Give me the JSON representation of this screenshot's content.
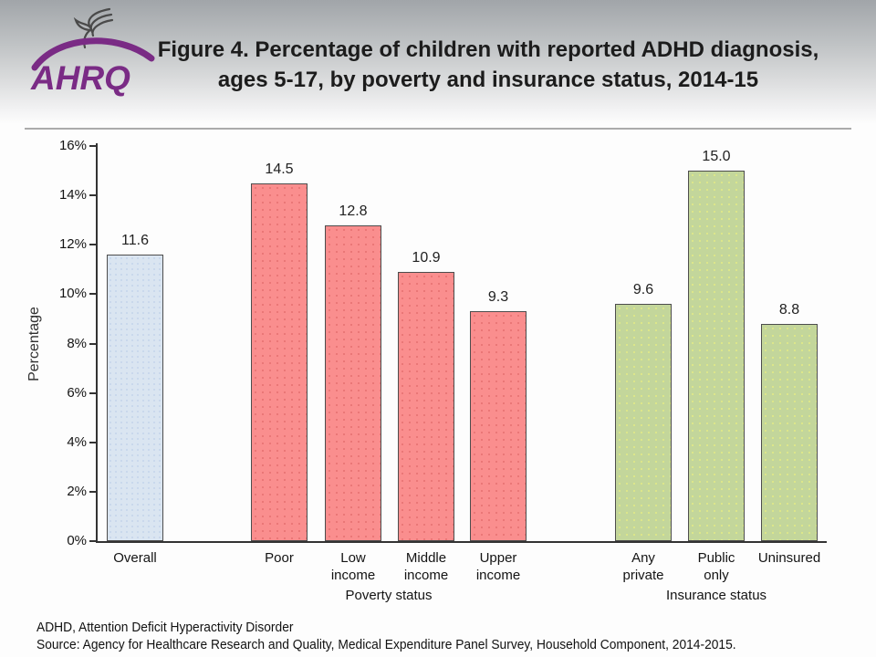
{
  "header": {
    "logo": {
      "org_abbr": "AHRQ",
      "org_icon": "hhs-eagle-icon",
      "brand_color": "#7A2B85"
    },
    "title_line1": "Figure 4. Percentage of children with reported ADHD diagnosis,",
    "title_line2": "ages 5-17, by poverty and insurance status, 2014-15"
  },
  "chart_data": {
    "type": "bar",
    "title": "Figure 4. Percentage of children with reported ADHD diagnosis, ages 5-17, by poverty and insurance status, 2014-15",
    "xlabel": "",
    "ylabel": "Percentage",
    "ylim": [
      0,
      16
    ],
    "ytick_step": 2,
    "ytick_suffix": "%",
    "grid": false,
    "legend": "none",
    "categories": [
      "Overall",
      "Poor",
      "Low\nincome",
      "Middle\nincome",
      "Upper\nincome",
      "Any\nprivate",
      "Public\nonly",
      "Uninsured"
    ],
    "values": [
      11.6,
      14.5,
      12.8,
      10.9,
      9.3,
      9.6,
      15.0,
      8.8
    ],
    "value_labels": [
      "11.6",
      "14.5",
      "12.8",
      "10.9",
      "9.3",
      "9.6",
      "15.0",
      "8.8"
    ],
    "bar_series": [
      "overall",
      "poverty",
      "poverty",
      "poverty",
      "poverty",
      "insurance",
      "insurance",
      "insurance"
    ],
    "palette": {
      "overall": {
        "fill": "#DAE5F1",
        "border": "#4D4D4D"
      },
      "poverty": {
        "fill": "#FA8E8E",
        "border": "#4D4D4D"
      },
      "insurance": {
        "fill": "#C3D69B",
        "border": "#4D4D4D"
      }
    },
    "groups": [
      {
        "label": "Poverty status",
        "first_index": 1,
        "last_index": 4
      },
      {
        "label": "Insurance status",
        "first_index": 5,
        "last_index": 7
      }
    ]
  },
  "footnotes": [
    "ADHD, Attention Deficit Hyperactivity Disorder",
    "Source: Agency for Healthcare Research and Quality, Medical Expenditure Panel Survey, Household Component, 2014-2015."
  ]
}
